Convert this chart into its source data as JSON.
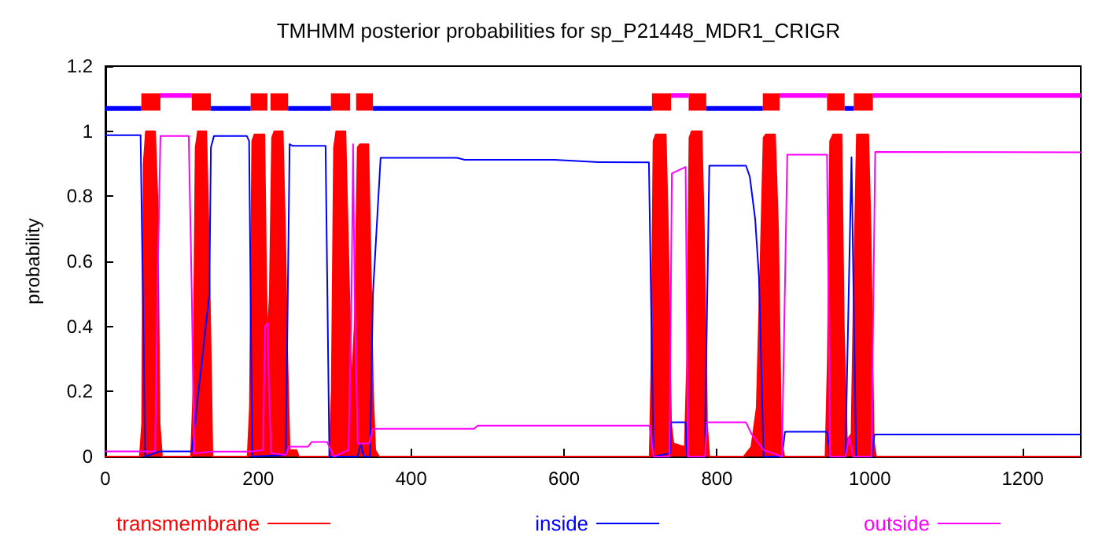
{
  "chart_data": {
    "type": "line",
    "title": "TMHMM posterior probabilities for sp_P21448_MDR1_CRIGR",
    "ylabel": "probability",
    "xlim": [
      0,
      1276
    ],
    "ylim": [
      0,
      1.2
    ],
    "xticks": [
      0,
      200,
      400,
      600,
      800,
      1000,
      1200
    ],
    "yticks": [
      0,
      0.2,
      0.4,
      0.6,
      0.8,
      1,
      1.2
    ],
    "grid": false,
    "legend": "bottom",
    "marker": "none",
    "series": [
      {
        "name": "transmembrane",
        "type": "area",
        "color": "#ff0000",
        "x": [
          0,
          45,
          48,
          50,
          53,
          65,
          68,
          71,
          74,
          112,
          115,
          118,
          121,
          132,
          135,
          138,
          140,
          186,
          189,
          192,
          195,
          208,
          210,
          212,
          215,
          218,
          221,
          232,
          235,
          238,
          241,
          250,
          253,
          293,
          296,
          299,
          302,
          314,
          318,
          322,
          326,
          330,
          333,
          344,
          347,
          350,
          353,
          358,
          712,
          714,
          717,
          720,
          733,
          736,
          740,
          743,
          758,
          761,
          764,
          767,
          780,
          783,
          787,
          790,
          835,
          845,
          852,
          857,
          861,
          864,
          876,
          880,
          884,
          888,
          942,
          945,
          948,
          952,
          963,
          966,
          970,
          976,
          979,
          983,
          986,
          998,
          1001,
          1005,
          1008,
          1276
        ],
        "values": [
          0,
          0,
          0.1,
          0.9,
          1,
          1,
          0.8,
          0.1,
          0,
          0,
          0.2,
          0.95,
          1,
          1,
          0.7,
          0.3,
          0,
          0,
          0.15,
          0.97,
          0.99,
          0.99,
          0.6,
          0.35,
          0.5,
          0.98,
          1,
          1,
          0.7,
          0.3,
          0.02,
          0.02,
          0,
          0,
          0.2,
          0.95,
          1,
          1,
          0.6,
          0.2,
          0.4,
          0.95,
          0.96,
          0.96,
          0.6,
          0.2,
          0.02,
          0,
          0,
          0.25,
          0.97,
          0.99,
          0.99,
          0.7,
          0.1,
          0.04,
          0.03,
          0.3,
          0.98,
          1,
          1,
          0.7,
          0.1,
          0,
          0,
          0.03,
          0.15,
          0.6,
          0.98,
          0.99,
          0.99,
          0.7,
          0.05,
          0,
          0,
          0.3,
          0.97,
          0.99,
          0.99,
          0.4,
          0.05,
          0.07,
          0.5,
          0.99,
          0.99,
          0.99,
          0.7,
          0.05,
          0,
          0
        ]
      },
      {
        "name": "inside",
        "color": "#0000ff",
        "x": [
          0,
          46,
          49,
          52,
          71,
          113,
          136,
          138,
          142,
          185,
          188,
          192,
          236,
          241,
          245,
          288,
          293,
          330,
          334,
          338,
          346,
          350,
          360,
          460,
          470,
          587,
          645,
          711,
          717,
          739,
          740,
          759,
          761,
          784,
          790,
          838,
          843,
          850,
          855,
          861,
          885,
          889,
          944,
          948,
          968,
          976,
          982,
          1003,
          1006,
          1276
        ],
        "values": [
          0.988,
          0.988,
          0.5,
          0,
          0.016,
          0.016,
          0.5,
          0.95,
          0.985,
          0.985,
          0.97,
          0,
          0.005,
          0.96,
          0.955,
          0.955,
          0,
          0,
          0.04,
          0,
          0,
          0.5,
          0.918,
          0.918,
          0.912,
          0.912,
          0.905,
          0.904,
          0,
          0.01,
          0.105,
          0.105,
          0,
          0,
          0.894,
          0.894,
          0.86,
          0.73,
          0.55,
          0,
          0,
          0.076,
          0.076,
          0,
          0,
          0.92,
          0,
          0,
          0.068,
          0.068
        ]
      },
      {
        "name": "outside",
        "color": "#ff00ff",
        "x": [
          0,
          65,
          68,
          72,
          109,
          113,
          116,
          140,
          188,
          206,
          209,
          212,
          214,
          217,
          236,
          240,
          265,
          270,
          290,
          299,
          318,
          322,
          324,
          326,
          330,
          345,
          350,
          482,
          487,
          712,
          717,
          738,
          741,
          759,
          762,
          784,
          787,
          838,
          845,
          861,
          885,
          892,
          944,
          948,
          968,
          973,
          978,
          1002,
          1007,
          1276
        ],
        "values": [
          0.016,
          0.016,
          0.5,
          0.985,
          0.985,
          0.5,
          0.01,
          0.015,
          0.015,
          0.02,
          0.4,
          0.41,
          0.2,
          0.01,
          0.005,
          0.03,
          0.03,
          0.045,
          0.045,
          0,
          0.02,
          0.5,
          0.96,
          0.5,
          0.04,
          0.04,
          0.085,
          0.085,
          0.095,
          0.095,
          0,
          0,
          0.87,
          0.89,
          0,
          0,
          0.105,
          0.105,
          0.07,
          0.02,
          0,
          0.928,
          0.928,
          0,
          0,
          0.06,
          0,
          0,
          0.936,
          0.935
        ]
      },
      {
        "color": "#0000ff",
        "x": [
          0,
          47,
          null,
          138,
          190,
          null,
          239,
          295,
          null,
          350,
          715,
          null,
          786,
          860,
          null,
          967,
          979
        ],
        "values": [
          1.07,
          1.07,
          null,
          1.07,
          1.07,
          null,
          1.07,
          1.07,
          null,
          1.07,
          1.07,
          null,
          1.07,
          1.07,
          null,
          1.07,
          1.07
        ]
      },
      {
        "color": "#ff00ff",
        "x": [
          72,
          113,
          null,
          740,
          763,
          null,
          882,
          944,
          null,
          1004,
          1276
        ],
        "values": [
          1.11,
          1.11,
          null,
          1.11,
          1.11,
          null,
          1.11,
          1.11,
          null,
          1.11,
          1.11
        ]
      },
      {
        "color": "#ff0000",
        "x": [
          47,
          72,
          null,
          113,
          138,
          null,
          190,
          212,
          null,
          216,
          239,
          null,
          295,
          320,
          null,
          328,
          350,
          null,
          715,
          740,
          null,
          763,
          786,
          null,
          860,
          882,
          null,
          944,
          967,
          null,
          979,
          1004
        ],
        "values": [
          1.09,
          1.09,
          null,
          1.09,
          1.09,
          null,
          1.09,
          1.09,
          null,
          1.09,
          1.09,
          null,
          1.09,
          1.09,
          null,
          1.09,
          1.09,
          null,
          1.09,
          1.09,
          null,
          1.09,
          1.09,
          null,
          1.09,
          1.09,
          null,
          1.09,
          1.09,
          null,
          1.09,
          1.09
        ]
      }
    ]
  }
}
